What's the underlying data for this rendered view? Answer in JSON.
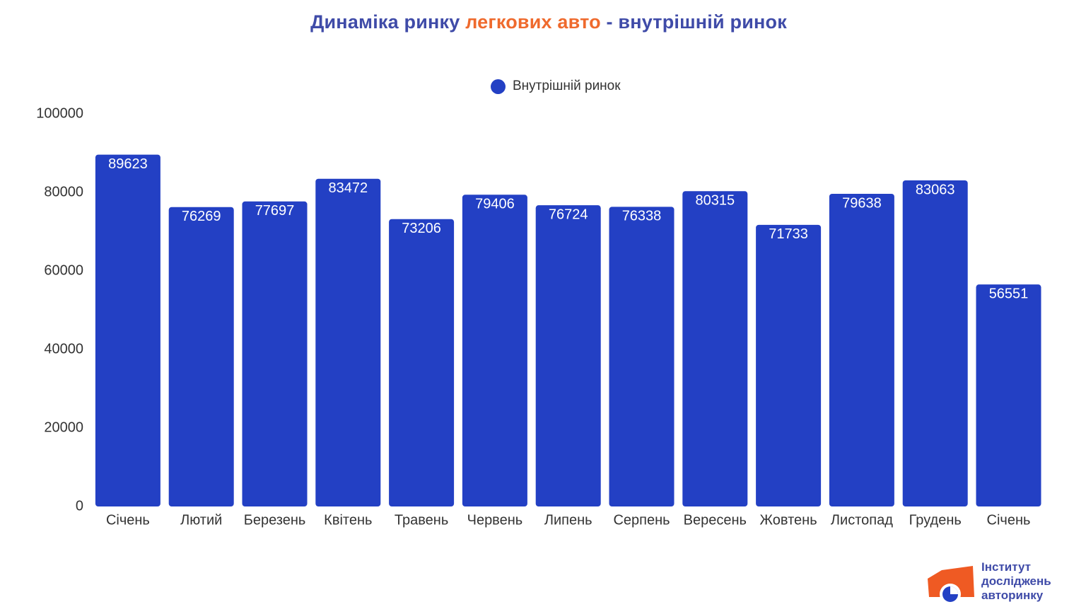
{
  "title": {
    "part1": "Динаміка ринку",
    "part2": "легкових авто",
    "part3": "- внутрішній ринок"
  },
  "colors": {
    "bar": "#2340c4",
    "title_blue": "#3f4ba8",
    "title_orange": "#ef6a2d",
    "logo_orange": "#ef5a23"
  },
  "logo": {
    "line1": "Інститут",
    "line2": "досліджень",
    "line3": "авторинку"
  },
  "chart_data": {
    "type": "bar",
    "title": "Динаміка ринку легкових авто - внутрішній ринок",
    "xlabel": "",
    "ylabel": "",
    "ylim": [
      0,
      100000
    ],
    "yticks": [
      0,
      20000,
      40000,
      60000,
      80000,
      100000
    ],
    "grid": false,
    "legend_position": "top-center",
    "categories": [
      "Січень",
      "Лютий",
      "Березень",
      "Квітень",
      "Травень",
      "Червень",
      "Липень",
      "Серпень",
      "Вересень",
      "Жовтень",
      "Листопад",
      "Грудень",
      "Січень"
    ],
    "series": [
      {
        "name": "Внутрішній ринок",
        "color": "#2340c4",
        "values": [
          89623,
          76269,
          77697,
          83472,
          73206,
          79406,
          76724,
          76338,
          80315,
          71733,
          79638,
          83063,
          56551
        ]
      }
    ]
  }
}
